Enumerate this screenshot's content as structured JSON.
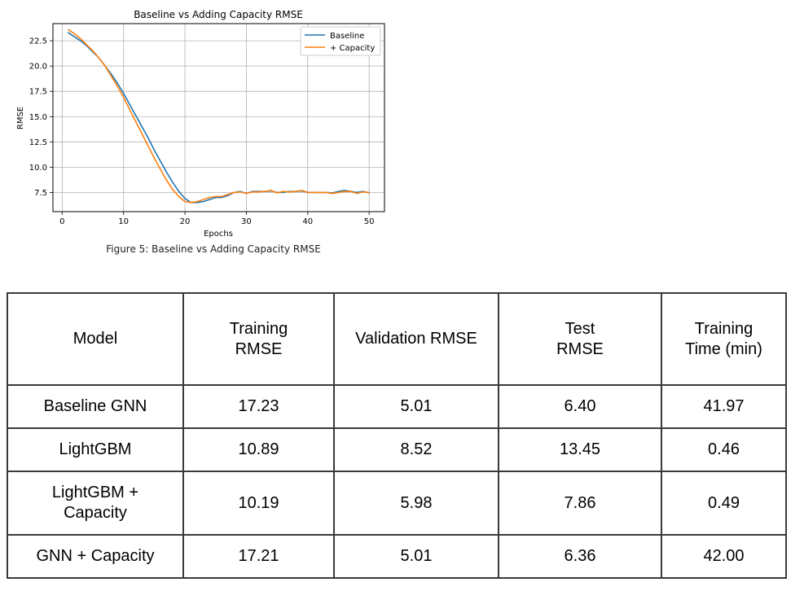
{
  "chart_data": {
    "type": "line",
    "title": "Baseline vs Adding Capacity RMSE",
    "xlabel": "Epochs",
    "ylabel": "RMSE",
    "xlim": [
      -1.5,
      52.5
    ],
    "ylim": [
      5.6,
      24.2
    ],
    "xticks": [
      0,
      10,
      20,
      30,
      40,
      50
    ],
    "xtick_labels": [
      "0",
      "10",
      "20",
      "30",
      "40",
      "50"
    ],
    "yticks": [
      7.5,
      10.0,
      12.5,
      15.0,
      17.5,
      20.0,
      22.5
    ],
    "ytick_labels": [
      "7.5",
      "10.0",
      "12.5",
      "15.0",
      "17.5",
      "20.0",
      "22.5"
    ],
    "grid": true,
    "legend": "top-right",
    "x": [
      1,
      2,
      3,
      4,
      5,
      6,
      7,
      8,
      9,
      10,
      11,
      12,
      13,
      14,
      15,
      16,
      17,
      18,
      19,
      20,
      21,
      22,
      23,
      24,
      25,
      26,
      27,
      28,
      29,
      30,
      31,
      32,
      33,
      34,
      35,
      36,
      37,
      38,
      39,
      40,
      41,
      42,
      43,
      44,
      45,
      46,
      47,
      48,
      49,
      50
    ],
    "series": [
      {
        "name": "Baseline",
        "color": "#1f77b4",
        "values": [
          23.3,
          22.9,
          22.5,
          22.0,
          21.4,
          20.8,
          20.0,
          19.2,
          18.3,
          17.3,
          16.2,
          15.1,
          14.0,
          12.9,
          11.7,
          10.6,
          9.5,
          8.5,
          7.6,
          6.9,
          6.5,
          6.5,
          6.6,
          6.8,
          7.0,
          7.0,
          7.2,
          7.5,
          7.6,
          7.4,
          7.6,
          7.6,
          7.6,
          7.65,
          7.5,
          7.5,
          7.6,
          7.6,
          7.65,
          7.5,
          7.5,
          7.5,
          7.5,
          7.45,
          7.6,
          7.7,
          7.6,
          7.5,
          7.6,
          7.45
        ]
      },
      {
        "name": "+ Capacity",
        "color": "#ff7f0e",
        "values": [
          23.6,
          23.2,
          22.7,
          22.1,
          21.5,
          20.8,
          20.0,
          19.0,
          18.0,
          16.9,
          15.7,
          14.5,
          13.3,
          12.1,
          10.9,
          9.8,
          8.7,
          7.8,
          7.1,
          6.6,
          6.5,
          6.6,
          6.8,
          7.0,
          7.1,
          7.1,
          7.3,
          7.5,
          7.55,
          7.4,
          7.55,
          7.55,
          7.6,
          7.7,
          7.45,
          7.6,
          7.55,
          7.6,
          7.7,
          7.5,
          7.5,
          7.5,
          7.5,
          7.4,
          7.5,
          7.6,
          7.6,
          7.4,
          7.55,
          7.5
        ]
      }
    ]
  },
  "caption": "Figure 5: Baseline vs Adding Capacity RMSE",
  "table": {
    "headers": [
      "Model",
      "Training\nRMSE",
      "Validation RMSE",
      "Test\nRMSE",
      "Training\nTime (min)"
    ],
    "rows": [
      [
        "Baseline GNN",
        "17.23",
        "5.01",
        "6.40",
        "41.97"
      ],
      [
        "LightGBM",
        "10.89",
        "8.52",
        "13.45",
        "0.46"
      ],
      [
        "LightGBM +\nCapacity",
        "10.19",
        "5.98",
        "7.86",
        "0.49"
      ],
      [
        "GNN + Capacity",
        "17.21",
        "5.01",
        "6.36",
        "42.00"
      ]
    ]
  }
}
